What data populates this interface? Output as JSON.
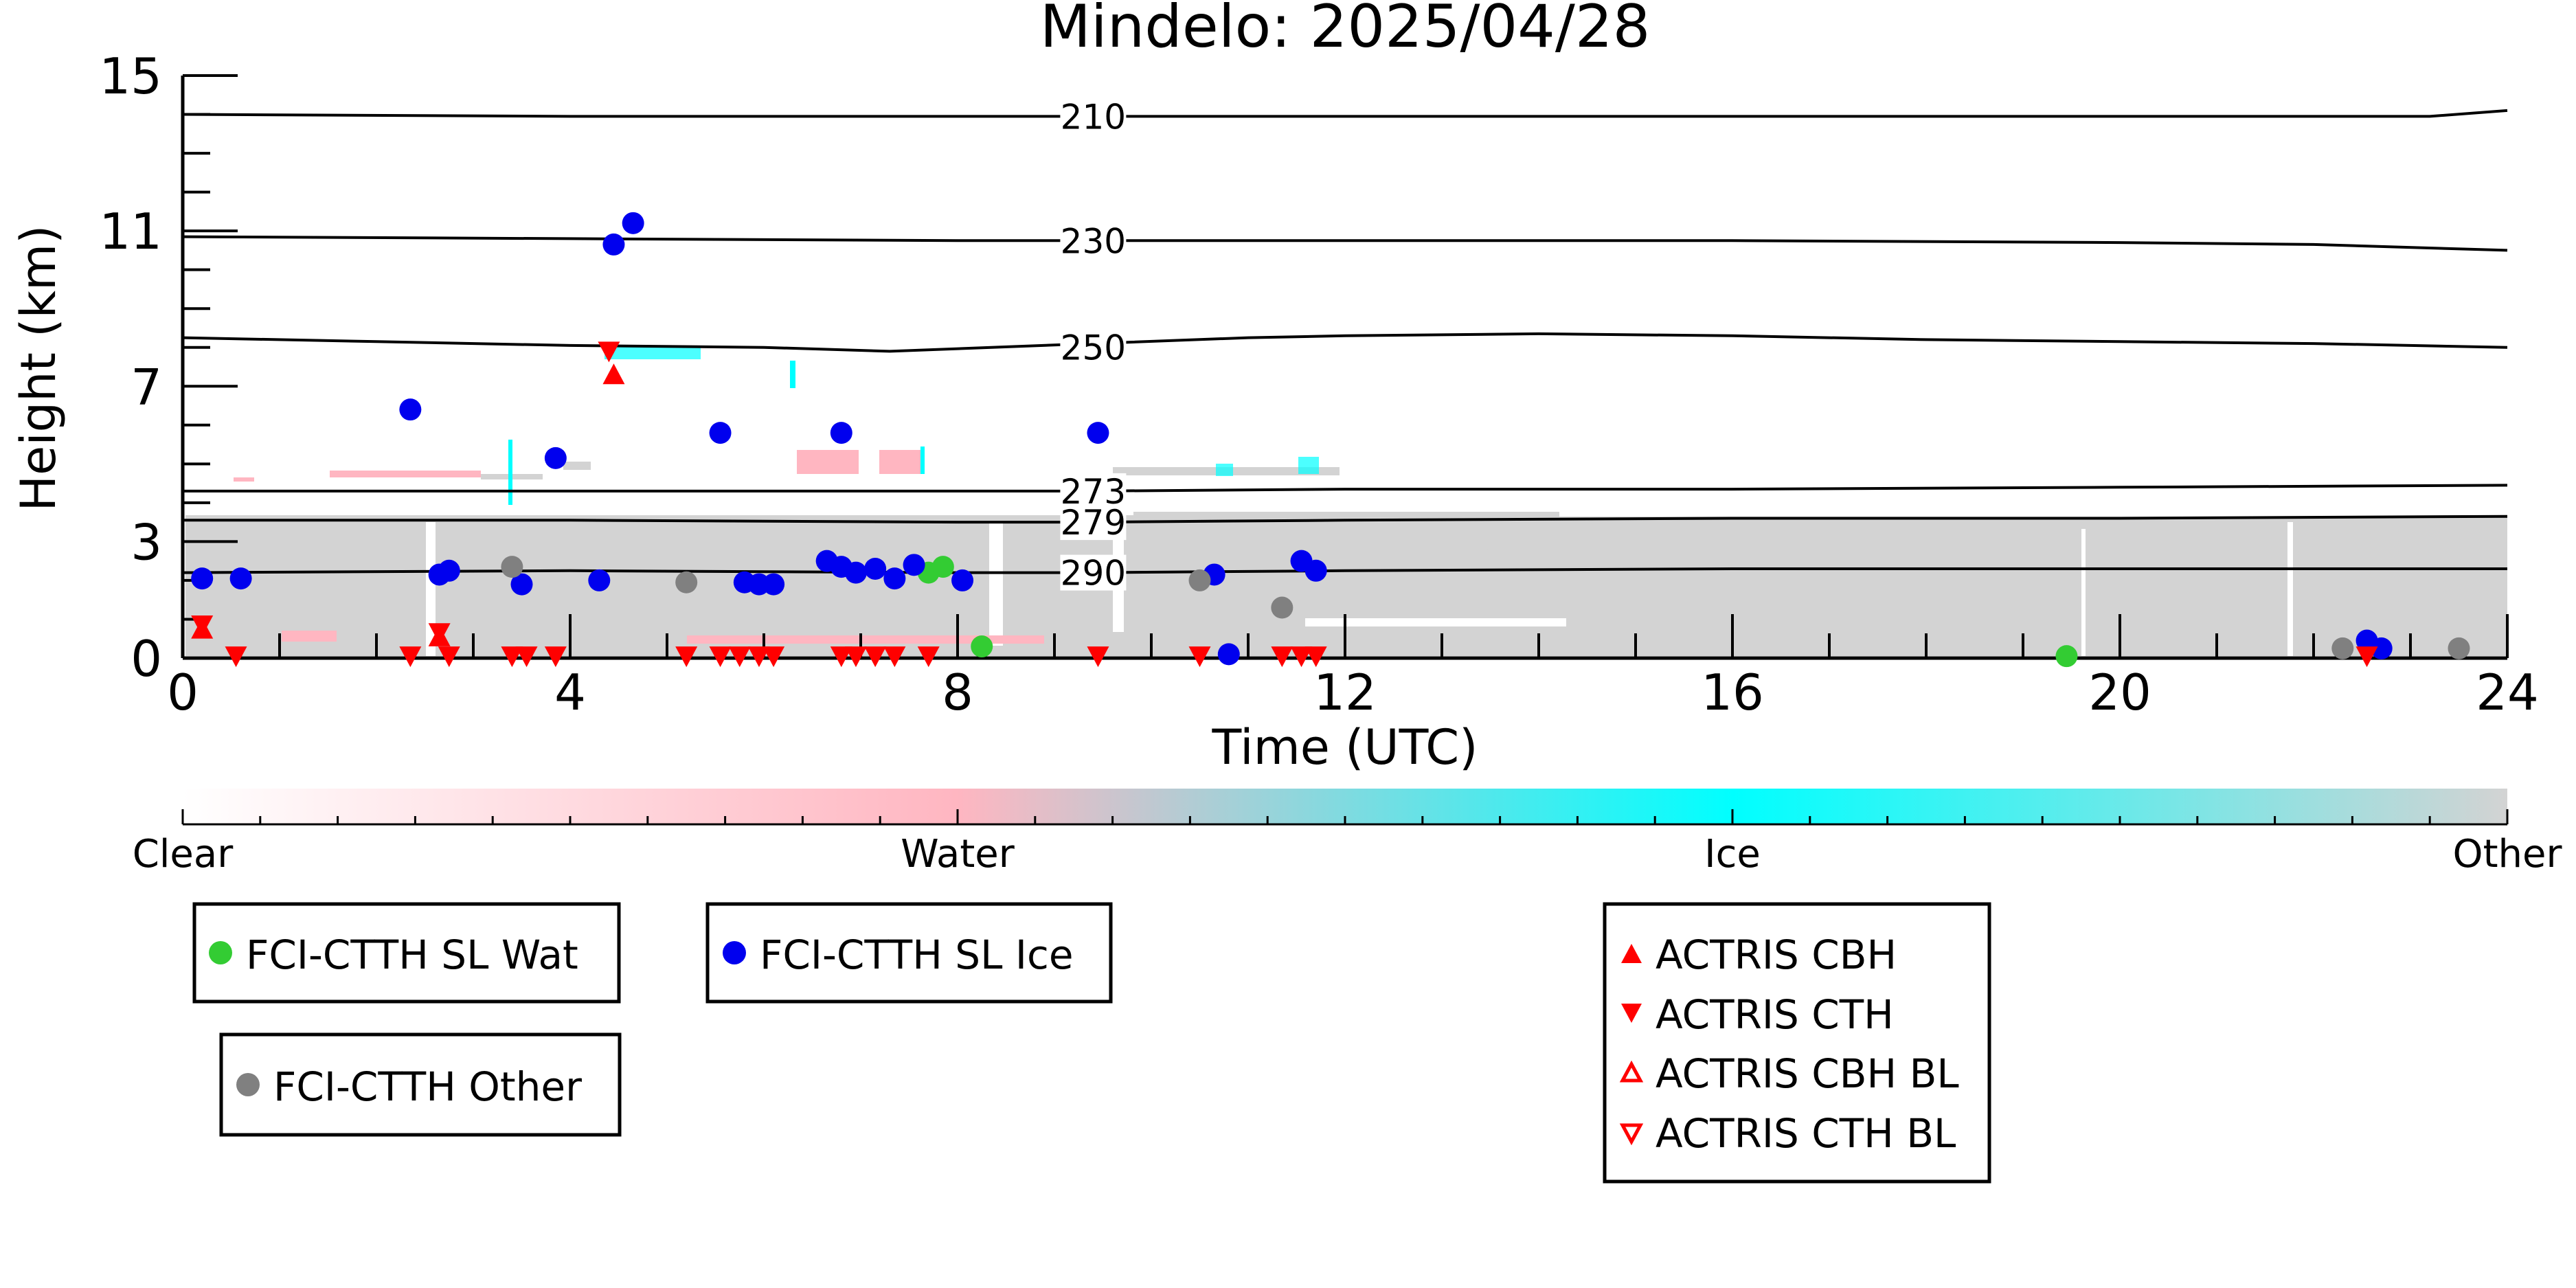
{
  "chart_data": {
    "type": "scatter",
    "title": "Mindelo: 2025/04/28",
    "xlabel": "Time (UTC)",
    "ylabel": "Height (km)",
    "xlim": [
      0,
      24
    ],
    "ylim": [
      0,
      15
    ],
    "xticks": [
      0,
      4,
      8,
      12,
      16,
      20,
      24
    ],
    "xtick_labels": [
      "0",
      "4",
      "8",
      "12",
      "16",
      "20",
      "24"
    ],
    "yticks": [
      0,
      3,
      7,
      11,
      15
    ],
    "ytick_labels": [
      "0",
      "3",
      "7",
      "11",
      "15"
    ],
    "grid": false,
    "isotherms": [
      {
        "label": "210",
        "x": [
          0,
          4,
          8,
          9.4,
          12,
          16,
          20,
          23.2,
          24
        ],
        "y": [
          14.0,
          13.95,
          13.95,
          13.95,
          13.95,
          13.95,
          13.95,
          13.95,
          14.1
        ]
      },
      {
        "label": "230",
        "x": [
          0,
          4,
          8,
          9.4,
          12,
          16,
          20,
          22,
          24
        ],
        "y": [
          10.85,
          10.8,
          10.75,
          10.75,
          10.75,
          10.75,
          10.7,
          10.65,
          10.5
        ]
      },
      {
        "label": "250",
        "x": [
          0,
          2,
          4,
          6,
          7.3,
          9.4,
          11,
          12,
          14,
          16,
          18,
          20,
          22,
          24
        ],
        "y": [
          8.25,
          8.15,
          8.05,
          8.0,
          7.9,
          8.1,
          8.25,
          8.3,
          8.35,
          8.3,
          8.2,
          8.15,
          8.1,
          8.0
        ]
      },
      {
        "label": "273",
        "x": [
          0,
          4,
          8,
          9.4,
          12,
          16,
          20,
          24
        ],
        "y": [
          4.3,
          4.3,
          4.3,
          4.3,
          4.35,
          4.35,
          4.4,
          4.45
        ]
      },
      {
        "label": "279",
        "x": [
          0,
          4,
          8,
          9.4,
          12,
          16,
          20,
          24
        ],
        "y": [
          3.55,
          3.55,
          3.5,
          3.5,
          3.55,
          3.6,
          3.6,
          3.65
        ]
      },
      {
        "label": "290",
        "x": [
          0,
          4,
          8,
          9.4,
          12,
          16,
          20,
          24
        ],
        "y": [
          2.2,
          2.25,
          2.2,
          2.2,
          2.25,
          2.3,
          2.3,
          2.3
        ]
      }
    ],
    "classification_colorbar": {
      "labels": [
        "Clear",
        "Water",
        "Ice",
        "Other"
      ],
      "colors": [
        "#ffffff",
        "#ffb6c1",
        "#00ffff",
        "#d3d3d3"
      ]
    },
    "series": [
      {
        "name": "FCI-CTTH SL Wat",
        "marker": "circle",
        "color": "#33cc33",
        "points": [
          [
            7.7,
            2.2
          ],
          [
            7.85,
            2.35
          ],
          [
            8.25,
            0.3
          ],
          [
            19.45,
            0.05
          ]
        ]
      },
      {
        "name": "FCI-CTTH SL Ice",
        "marker": "circle",
        "color": "#0000ee",
        "points": [
          [
            0.2,
            2.05
          ],
          [
            0.6,
            2.05
          ],
          [
            2.35,
            6.4
          ],
          [
            2.65,
            2.15
          ],
          [
            2.75,
            2.25
          ],
          [
            3.5,
            1.9
          ],
          [
            3.85,
            5.15
          ],
          [
            4.3,
            2.0
          ],
          [
            4.45,
            10.65
          ],
          [
            4.65,
            11.2
          ],
          [
            5.55,
            5.8
          ],
          [
            5.8,
            1.95
          ],
          [
            5.95,
            1.9
          ],
          [
            6.1,
            1.9
          ],
          [
            6.65,
            2.5
          ],
          [
            6.8,
            2.35
          ],
          [
            6.8,
            5.8
          ],
          [
            6.95,
            2.2
          ],
          [
            7.15,
            2.3
          ],
          [
            7.35,
            2.05
          ],
          [
            7.55,
            2.4
          ],
          [
            8.05,
            2.0
          ],
          [
            9.45,
            5.8
          ],
          [
            10.65,
            2.15
          ],
          [
            10.8,
            0.1
          ],
          [
            11.55,
            2.5
          ],
          [
            11.7,
            2.25
          ],
          [
            22.55,
            0.45
          ],
          [
            22.7,
            0.25
          ]
        ]
      },
      {
        "name": "FCI-CTTH Other",
        "marker": "circle",
        "color": "#808080",
        "points": [
          [
            3.4,
            2.35
          ],
          [
            5.2,
            1.95
          ],
          [
            10.5,
            2.0
          ],
          [
            11.35,
            1.3
          ],
          [
            22.3,
            0.25
          ],
          [
            23.5,
            0.25
          ]
        ]
      },
      {
        "name": "ACTRIS CBH",
        "marker": "triangle-up",
        "color": "#ff0000",
        "filled": true,
        "points": [
          [
            0.2,
            0.75
          ],
          [
            2.65,
            0.55
          ],
          [
            4.45,
            7.3
          ]
        ]
      },
      {
        "name": "ACTRIS CTH",
        "marker": "triangle-down",
        "color": "#ff0000",
        "filled": true,
        "points": [
          [
            0.2,
            0.85
          ],
          [
            0.55,
            0.05
          ],
          [
            2.35,
            0.05
          ],
          [
            2.65,
            0.65
          ],
          [
            2.75,
            0.05
          ],
          [
            3.4,
            0.05
          ],
          [
            3.55,
            0.05
          ],
          [
            3.85,
            0.05
          ],
          [
            4.4,
            7.9
          ],
          [
            5.2,
            0.05
          ],
          [
            5.55,
            0.05
          ],
          [
            5.75,
            0.05
          ],
          [
            5.95,
            0.05
          ],
          [
            6.1,
            0.05
          ],
          [
            6.8,
            0.05
          ],
          [
            6.95,
            0.05
          ],
          [
            7.15,
            0.05
          ],
          [
            7.35,
            0.05
          ],
          [
            7.7,
            0.05
          ],
          [
            9.45,
            0.05
          ],
          [
            10.5,
            0.05
          ],
          [
            11.35,
            0.05
          ],
          [
            11.55,
            0.05
          ],
          [
            11.7,
            0.05
          ],
          [
            22.55,
            0.05
          ]
        ]
      },
      {
        "name": "ACTRIS CBH BL",
        "marker": "triangle-up",
        "color": "#ff0000",
        "filled": false,
        "points": []
      },
      {
        "name": "ACTRIS CTH BL",
        "marker": "triangle-down",
        "color": "#ff0000",
        "filled": false,
        "points": []
      }
    ]
  }
}
